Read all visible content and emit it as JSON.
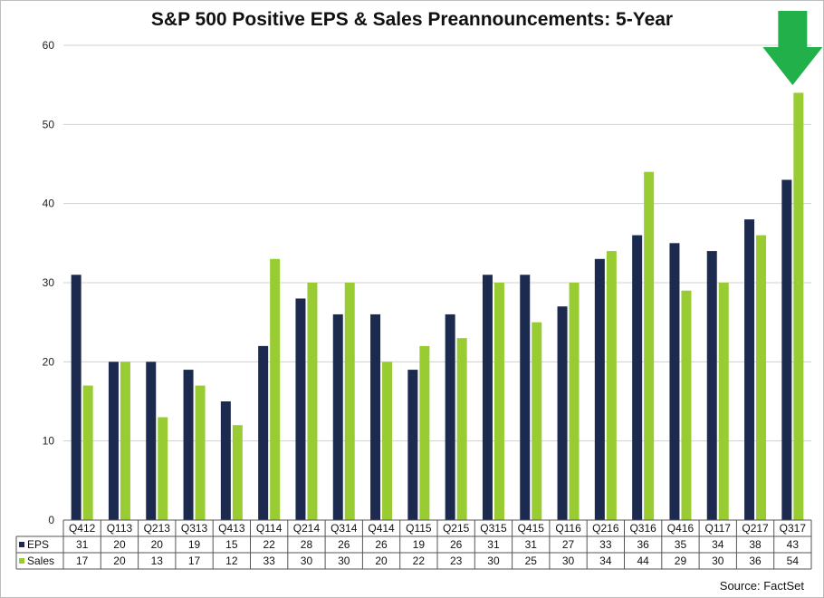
{
  "title": "S&P 500 Positive EPS & Sales Preannouncements: 5-Year",
  "source": "Source: FactSet",
  "chart_data": {
    "type": "bar",
    "title": "S&P 500 Positive EPS & Sales Preannouncements: 5-Year",
    "xlabel": "",
    "ylabel": "",
    "ylim": [
      0,
      60
    ],
    "yticks": [
      0,
      10,
      20,
      30,
      40,
      50,
      60
    ],
    "grid": true,
    "legend": "data-table",
    "categories": [
      "Q412",
      "Q113",
      "Q213",
      "Q313",
      "Q413",
      "Q114",
      "Q214",
      "Q314",
      "Q414",
      "Q115",
      "Q215",
      "Q315",
      "Q415",
      "Q116",
      "Q216",
      "Q316",
      "Q416",
      "Q117",
      "Q217",
      "Q317"
    ],
    "series": [
      {
        "name": "EPS",
        "color": "#1b2a4e",
        "values": [
          31,
          20,
          20,
          19,
          15,
          22,
          28,
          26,
          26,
          19,
          26,
          31,
          31,
          27,
          33,
          36,
          35,
          34,
          38,
          43
        ]
      },
      {
        "name": "Sales",
        "color": "#99cc33",
        "values": [
          17,
          20,
          13,
          17,
          12,
          33,
          30,
          30,
          20,
          22,
          23,
          30,
          25,
          30,
          34,
          44,
          29,
          30,
          36,
          54
        ]
      }
    ],
    "annotation": {
      "shape": "arrow-down",
      "color": "#22b04a",
      "category": "Q317"
    }
  }
}
